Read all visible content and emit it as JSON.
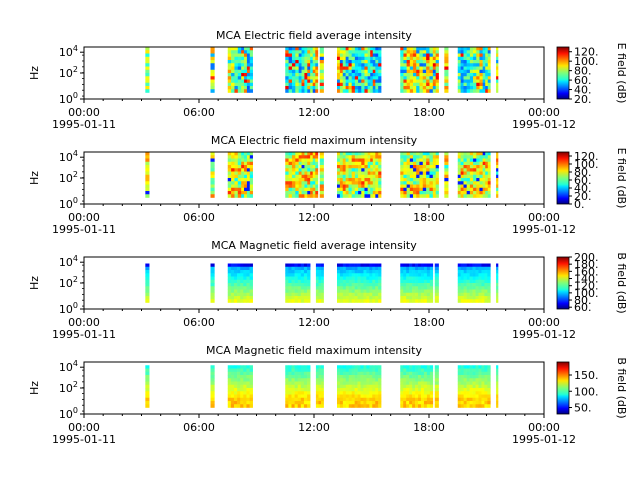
{
  "window": {
    "width": 640,
    "height": 480
  },
  "chart_data": [
    {
      "type": "heatmap",
      "title": "MCA  Electric field average intensity",
      "ylabel": "Hz",
      "colorbar_label": "E field (dB)",
      "colorbar_ticks": [
        "20.",
        "40.",
        "60.",
        "80.",
        "100.",
        "120."
      ],
      "colorbar_range": [
        20,
        130
      ],
      "yticks": [
        {
          "base": "10",
          "exp": "0"
        },
        {
          "base": "10",
          "exp": "2"
        },
        {
          "base": "10",
          "exp": "4"
        }
      ],
      "x_tick_labels": [
        "00:00",
        "06:00",
        "12:00",
        "18:00",
        "00:00"
      ],
      "x_date_labels": [
        "1995-01-11",
        "1995-01-12"
      ],
      "data_hours": [
        [
          3.2,
          3.4
        ],
        [
          6.6,
          6.8
        ],
        [
          7.5,
          8.2
        ],
        [
          8.2,
          8.8
        ],
        [
          10.5,
          11.2
        ],
        [
          11.2,
          11.8
        ],
        [
          11.8,
          12.2
        ],
        [
          12.3,
          12.5
        ],
        [
          13.2,
          13.8
        ],
        [
          13.8,
          14.8
        ],
        [
          14.8,
          15.2
        ],
        [
          15.2,
          15.5
        ],
        [
          16.5,
          17.5
        ],
        [
          17.5,
          18.2
        ],
        [
          18.2,
          18.5
        ],
        [
          18.8,
          19.0
        ],
        [
          19.5,
          19.8
        ],
        [
          19.8,
          20.8
        ],
        [
          20.8,
          21.2
        ],
        [
          21.5,
          21.6
        ]
      ],
      "mode": "efield_avg"
    },
    {
      "type": "heatmap",
      "title": "MCA  Electric field maximum intensity",
      "ylabel": "Hz",
      "colorbar_label": "E field (dB)",
      "colorbar_ticks": [
        "0.",
        "20.",
        "40.",
        "60.",
        "80.",
        "100.",
        "120."
      ],
      "colorbar_range": [
        0,
        130
      ],
      "yticks": [
        {
          "base": "10",
          "exp": "0"
        },
        {
          "base": "10",
          "exp": "2"
        },
        {
          "base": "10",
          "exp": "4"
        }
      ],
      "x_tick_labels": [
        "00:00",
        "06:00",
        "12:00",
        "18:00",
        "00:00"
      ],
      "x_date_labels": [
        "1995-01-11",
        "1995-01-12"
      ],
      "data_hours": [
        [
          3.2,
          3.4
        ],
        [
          6.6,
          6.8
        ],
        [
          7.5,
          8.2
        ],
        [
          8.2,
          8.8
        ],
        [
          10.5,
          11.2
        ],
        [
          11.2,
          11.8
        ],
        [
          11.8,
          12.2
        ],
        [
          12.3,
          12.5
        ],
        [
          13.2,
          13.8
        ],
        [
          13.8,
          14.8
        ],
        [
          14.8,
          15.2
        ],
        [
          15.2,
          15.5
        ],
        [
          16.5,
          17.5
        ],
        [
          17.5,
          18.2
        ],
        [
          18.2,
          18.5
        ],
        [
          18.8,
          19.0
        ],
        [
          19.5,
          19.8
        ],
        [
          19.8,
          20.8
        ],
        [
          20.8,
          21.2
        ],
        [
          21.5,
          21.6
        ]
      ],
      "mode": "efield_max"
    },
    {
      "type": "heatmap",
      "title": "MCA  Magnetic field average intensity",
      "ylabel": "Hz",
      "colorbar_label": "B field (dB)",
      "colorbar_ticks": [
        "60.",
        "80.",
        "100.",
        "120.",
        "140.",
        "160.",
        "180.",
        "200."
      ],
      "colorbar_range": [
        55,
        200
      ],
      "yticks": [
        {
          "base": "10",
          "exp": "0"
        },
        {
          "base": "10",
          "exp": "2"
        },
        {
          "base": "10",
          "exp": "4"
        }
      ],
      "x_tick_labels": [
        "00:00",
        "06:00",
        "12:00",
        "18:00",
        "00:00"
      ],
      "x_date_labels": [
        "1995-01-11",
        "1995-01-12"
      ],
      "data_hours": [
        [
          3.2,
          3.4
        ],
        [
          6.6,
          6.8
        ],
        [
          7.5,
          8.8
        ],
        [
          10.5,
          11.8
        ],
        [
          12.1,
          12.5
        ],
        [
          13.2,
          15.5
        ],
        [
          16.5,
          18.2
        ],
        [
          18.3,
          18.5
        ],
        [
          19.5,
          21.2
        ],
        [
          21.5,
          21.6
        ]
      ],
      "mode": "bfield_avg"
    },
    {
      "type": "heatmap",
      "title": "MCA  Magnetic field maximum intensity",
      "ylabel": "Hz",
      "colorbar_label": "B field (dB)",
      "colorbar_ticks": [
        "50.",
        "100.",
        "150."
      ],
      "colorbar_range": [
        30,
        190
      ],
      "yticks": [
        {
          "base": "10",
          "exp": "0"
        },
        {
          "base": "10",
          "exp": "2"
        },
        {
          "base": "10",
          "exp": "4"
        }
      ],
      "x_tick_labels": [
        "00:00",
        "06:00",
        "12:00",
        "18:00",
        "00:00"
      ],
      "x_date_labels": [
        "1995-01-11",
        "1995-01-12"
      ],
      "data_hours": [
        [
          3.2,
          3.4
        ],
        [
          6.6,
          6.8
        ],
        [
          7.5,
          8.8
        ],
        [
          10.5,
          11.8
        ],
        [
          12.1,
          12.5
        ],
        [
          13.2,
          15.5
        ],
        [
          16.5,
          18.2
        ],
        [
          18.3,
          18.5
        ],
        [
          19.5,
          21.2
        ],
        [
          21.5,
          21.6
        ]
      ],
      "mode": "bfield_max"
    }
  ]
}
